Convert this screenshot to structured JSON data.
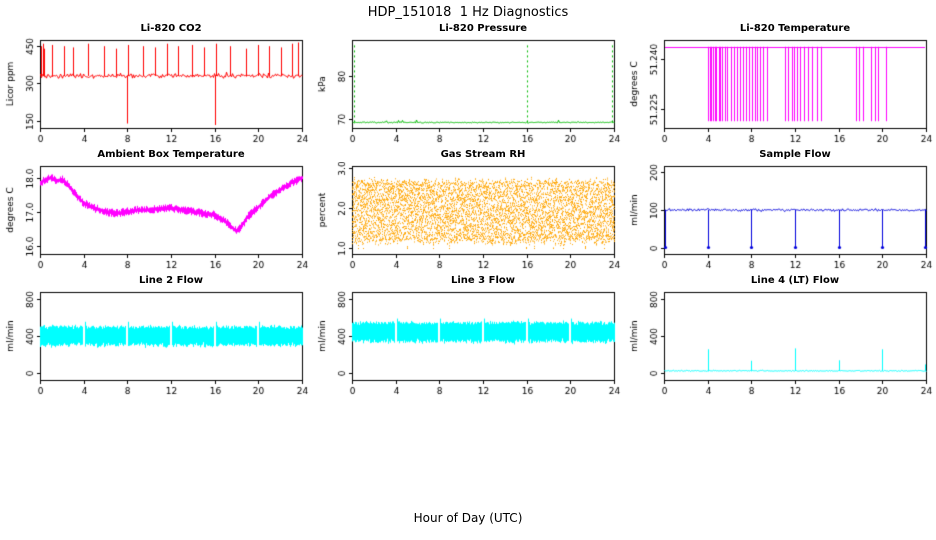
{
  "header": {
    "title": "HDP_151018  1 Hz Diagnostics"
  },
  "footer": {
    "xlabel": "Hour of Day (UTC)"
  },
  "chart_data": [
    {
      "type": "line",
      "title": "Li-820 CO2",
      "ylabel": "Licor ppm",
      "xlim": [
        0,
        24
      ],
      "ylim": [
        120,
        475
      ],
      "xticks": [
        0,
        4,
        8,
        12,
        16,
        20,
        24
      ],
      "yticks": [
        150,
        300,
        450
      ],
      "ytick_labels": [
        "150",
        "300",
        "450"
      ],
      "color": "#FF0000",
      "series": {
        "kind": "noisy_baseline",
        "baseline": 330,
        "noise": 9,
        "pop_prob": 0.02,
        "pop_amp": 25,
        "spikes_up": {
          "times": [
            0.1,
            0.25,
            0.4,
            1.1,
            2.2,
            3.0,
            4.4,
            5.9,
            7.0,
            8.1,
            9.4,
            10.5,
            11.6,
            12.6,
            13.9,
            15.0,
            16.1,
            17.4,
            18.9,
            20.0,
            21.0,
            22.1,
            23.1,
            23.6
          ],
          "values": [
            450,
            460,
            440,
            455,
            450,
            445,
            460,
            450,
            440,
            455,
            450,
            445,
            460,
            450,
            455,
            445,
            460,
            450,
            440,
            455,
            450,
            445,
            460,
            465
          ]
        },
        "spikes_down": {
          "times": [
            8.0,
            16.0
          ],
          "values": [
            138,
            132
          ]
        }
      }
    },
    {
      "type": "line",
      "title": "Li-820 Pressure",
      "ylabel": "kPa",
      "xlim": [
        0,
        24
      ],
      "ylim": [
        68,
        88.5
      ],
      "xticks": [
        0,
        4,
        8,
        12,
        16,
        20,
        24
      ],
      "yticks": [
        70,
        80
      ],
      "ytick_labels": [
        "70",
        "80"
      ],
      "color": "#00BB00",
      "series": {
        "kind": "noisy_baseline",
        "baseline": 69.3,
        "noise": 0.12,
        "pop_prob": 0.015,
        "pop_amp": 0.9,
        "spikes_up": {
          "times": [
            0.2,
            16.0,
            23.85
          ],
          "values": [
            87.3,
            87.3,
            87.3
          ],
          "dashed": true
        }
      }
    },
    {
      "type": "line",
      "title": "Li-820 Temperature",
      "ylabel": "degrees C",
      "xlim": [
        0,
        24
      ],
      "ylim": [
        51.2195,
        51.2455
      ],
      "xticks": [
        0,
        4,
        8,
        12,
        16,
        20,
        24
      ],
      "yticks": [
        51.225,
        51.24
      ],
      "ytick_labels": [
        "51.225",
        "51.240"
      ],
      "color": "#FF00FF",
      "series": {
        "kind": "top_with_drops",
        "top": 51.2435,
        "bottom": 51.2215,
        "drop_times": [
          4.05,
          4.2,
          4.35,
          4.5,
          4.65,
          4.8,
          5.0,
          5.15,
          5.35,
          5.6,
          5.8,
          6.1,
          6.4,
          6.7,
          7.0,
          7.2,
          7.5,
          7.8,
          8.1,
          8.3,
          8.5,
          8.8,
          9.1,
          9.4,
          11.1,
          11.4,
          11.7,
          11.9,
          12.2,
          12.5,
          12.8,
          13.2,
          13.6,
          14.0,
          14.4,
          17.6,
          17.9,
          18.2,
          19.0,
          19.3,
          19.6,
          20.3
        ]
      }
    },
    {
      "type": "line",
      "title": "Ambient Box Temperature",
      "ylabel": "degrees C",
      "xlim": [
        0,
        24
      ],
      "ylim": [
        15.75,
        18.35
      ],
      "xticks": [
        0,
        4,
        8,
        12,
        16,
        20,
        24
      ],
      "yticks": [
        16.0,
        17.0,
        18.0
      ],
      "ytick_labels": [
        "16.0",
        "17.0",
        "18.0"
      ],
      "color": "#FF00FF",
      "series": {
        "kind": "noisy_curve",
        "noise": 0.09,
        "points": [
          [
            0,
            17.85
          ],
          [
            0.5,
            17.95
          ],
          [
            1,
            18.0
          ],
          [
            1.5,
            17.9
          ],
          [
            2,
            17.95
          ],
          [
            2.5,
            17.8
          ],
          [
            3,
            17.6
          ],
          [
            3.5,
            17.4
          ],
          [
            4,
            17.25
          ],
          [
            5,
            17.1
          ],
          [
            6,
            17.0
          ],
          [
            7,
            16.95
          ],
          [
            8,
            17.0
          ],
          [
            9,
            17.05
          ],
          [
            10,
            17.05
          ],
          [
            11,
            17.1
          ],
          [
            12,
            17.1
          ],
          [
            13,
            17.05
          ],
          [
            14,
            17.0
          ],
          [
            15,
            16.95
          ],
          [
            16,
            16.9
          ],
          [
            17,
            16.7
          ],
          [
            17.5,
            16.55
          ],
          [
            18,
            16.42
          ],
          [
            18.5,
            16.6
          ],
          [
            19,
            16.85
          ],
          [
            20,
            17.15
          ],
          [
            21,
            17.45
          ],
          [
            22,
            17.65
          ],
          [
            23,
            17.85
          ],
          [
            24,
            18.0
          ]
        ]
      }
    },
    {
      "type": "area",
      "title": "Gas Stream RH",
      "ylabel": "percent",
      "xlim": [
        0,
        24
      ],
      "ylim": [
        0.85,
        3.05
      ],
      "xticks": [
        0,
        4,
        8,
        12,
        16,
        20,
        24
      ],
      "yticks": [
        1.0,
        2.0,
        3.0
      ],
      "ytick_labels": [
        "1.0",
        "2.0",
        "3.0"
      ],
      "color": "#FFA500",
      "series": {
        "kind": "band",
        "low": 1.2,
        "high": 2.65,
        "low_jitter": 0.12,
        "high_jitter": 0.1,
        "dip_to": 1.0,
        "dip_prob": 0.05,
        "texture": "dots"
      }
    },
    {
      "type": "line",
      "title": "Sample Flow",
      "ylabel": "ml/min",
      "xlim": [
        0,
        24
      ],
      "ylim": [
        -15,
        215
      ],
      "xticks": [
        0,
        4,
        8,
        12,
        16,
        20,
        24
      ],
      "yticks": [
        0,
        100,
        200
      ],
      "ytick_labels": [
        "0",
        "100",
        "200"
      ],
      "color": "#0000DD",
      "series": {
        "kind": "noisy_baseline",
        "baseline": 100,
        "noise": 3,
        "spikes_down": {
          "times": [
            0.1,
            4.0,
            8.0,
            12.0,
            16.0,
            20.0,
            23.9
          ],
          "values": [
            2,
            2,
            2,
            2,
            2,
            2,
            2
          ],
          "marker": true
        }
      }
    },
    {
      "type": "area",
      "title": "Line 2 Flow",
      "ylabel": "ml/min",
      "xlim": [
        0,
        24
      ],
      "ylim": [
        -80,
        880
      ],
      "xticks": [
        0,
        4,
        8,
        12,
        16,
        20,
        24
      ],
      "yticks": [
        0,
        400,
        800
      ],
      "ytick_labels": [
        "0",
        "400",
        "800"
      ],
      "color": "#00FFFF",
      "series": {
        "kind": "band",
        "low": 300,
        "high": 500,
        "low_jitter": 25,
        "high_jitter": 20,
        "gaps": [
          4,
          8,
          12,
          16,
          20
        ],
        "gap_spike": 555
      }
    },
    {
      "type": "area",
      "title": "Line 3 Flow",
      "ylabel": "ml/min",
      "xlim": [
        0,
        24
      ],
      "ylim": [
        -80,
        880
      ],
      "xticks": [
        0,
        4,
        8,
        12,
        16,
        20,
        24
      ],
      "yticks": [
        0,
        400,
        800
      ],
      "ytick_labels": [
        "0",
        "400",
        "800"
      ],
      "color": "#00FFFF",
      "series": {
        "kind": "band",
        "low": 340,
        "high": 545,
        "low_jitter": 25,
        "high_jitter": 20,
        "gaps": [
          4,
          8,
          12,
          16,
          20
        ],
        "gap_spike": 590
      }
    },
    {
      "type": "line",
      "title": "Line 4 (LT) Flow",
      "ylabel": "ml/min",
      "xlim": [
        0,
        24
      ],
      "ylim": [
        -80,
        880
      ],
      "xticks": [
        0,
        4,
        8,
        12,
        16,
        20,
        24
      ],
      "yticks": [
        0,
        400,
        800
      ],
      "ytick_labels": [
        "0",
        "400",
        "800"
      ],
      "color": "#00FFFF",
      "series": {
        "kind": "noisy_baseline",
        "baseline": 20,
        "noise": 6,
        "spikes_up": {
          "times": [
            4.0,
            8.0,
            12.0,
            16.0,
            20.0,
            23.9
          ],
          "values": [
            255,
            130,
            265,
            135,
            255,
            90
          ]
        }
      }
    }
  ]
}
